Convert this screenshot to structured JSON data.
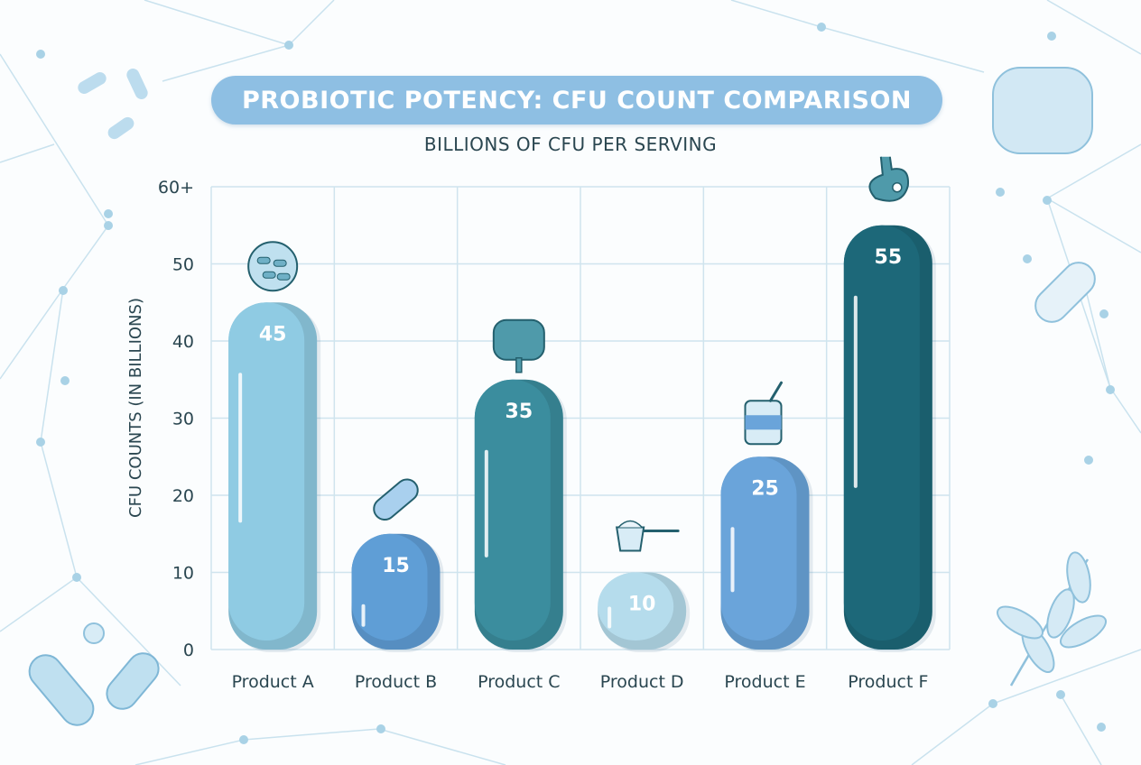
{
  "chart_data": {
    "type": "bar",
    "title": "PROBIOTIC POTENCY: CFU COUNT COMPARISON",
    "subtitle": "BILLIONS OF CFU PER SERVING",
    "ylabel": "CFU COUNTS (IN BILLIONS)",
    "xlabel": "",
    "categories": [
      "Product A",
      "Product B",
      "Product C",
      "Product D",
      "Product E",
      "Product F"
    ],
    "values": [
      45,
      15,
      35,
      10,
      25,
      55
    ],
    "data_labels": [
      "45",
      "15",
      "35",
      "10",
      "25",
      "55"
    ],
    "ylim": [
      0,
      60
    ],
    "yticks": [
      0,
      10,
      20,
      30,
      40,
      50,
      60
    ],
    "ytick_labels": [
      "0",
      "10",
      "20",
      "30",
      "40",
      "50",
      "60+"
    ],
    "grid": true,
    "bar_colors": [
      "#8fcbe3",
      "#5f9ed6",
      "#3b8d9e",
      "#b5dcec",
      "#6aa4da",
      "#1d6879"
    ],
    "bar_icons": [
      "bacteria-petri-icon",
      "capsule-icon",
      "intestine-icon",
      "powder-scoop-icon",
      "yogurt-jar-icon",
      "stomach-icon"
    ]
  }
}
